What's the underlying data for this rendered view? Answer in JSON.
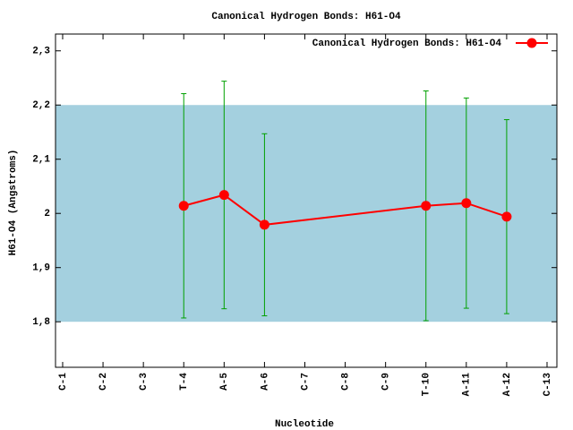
{
  "chart_data": {
    "type": "line",
    "title": "Canonical Hydrogen Bonds: H61-O4",
    "x_label": "Nucleotide",
    "y_label": "H61-O4 (Angstroms)",
    "x": [
      4,
      5,
      6,
      10,
      11,
      12
    ],
    "series": [
      {
        "name": "Canonical Hydrogen Bonds: H61-O4",
        "color": "#ff0000",
        "values": [
          2.014,
          2.034,
          1.979,
          2.014,
          2.019,
          1.994
        ],
        "errors": [
          0.207,
          0.21,
          0.168,
          0.212,
          0.194,
          0.179
        ],
        "error_color": "#00a000"
      }
    ],
    "band": {
      "ymin": 1.8,
      "ymax": 2.2,
      "color": "#a4d0df"
    },
    "xlim": [
      0.823,
      13.244
    ],
    "ylim": [
      1.716,
      2.331
    ],
    "xticks": [
      {
        "value": 1,
        "label": "C-1"
      },
      {
        "value": 2,
        "label": "C-2"
      },
      {
        "value": 3,
        "label": "C-3"
      },
      {
        "value": 4,
        "label": "T-4"
      },
      {
        "value": 5,
        "label": "A-5"
      },
      {
        "value": 6,
        "label": "A-6"
      },
      {
        "value": 7,
        "label": "C-7"
      },
      {
        "value": 8,
        "label": "C-8"
      },
      {
        "value": 9,
        "label": "C-9"
      },
      {
        "value": 10,
        "label": "T-10"
      },
      {
        "value": 11,
        "label": "A-11"
      },
      {
        "value": 12,
        "label": "A-12"
      },
      {
        "value": 13,
        "label": "C-13"
      }
    ],
    "yticks": [
      {
        "value": 1.8,
        "label": "1,8"
      },
      {
        "value": 1.9,
        "label": "1,9"
      },
      2,
      {
        "value": 2.1,
        "label": "2,1"
      },
      {
        "value": 2.2,
        "label": "2,2"
      },
      {
        "value": 2.3,
        "label": "2,3"
      }
    ],
    "legend": "top-right"
  }
}
